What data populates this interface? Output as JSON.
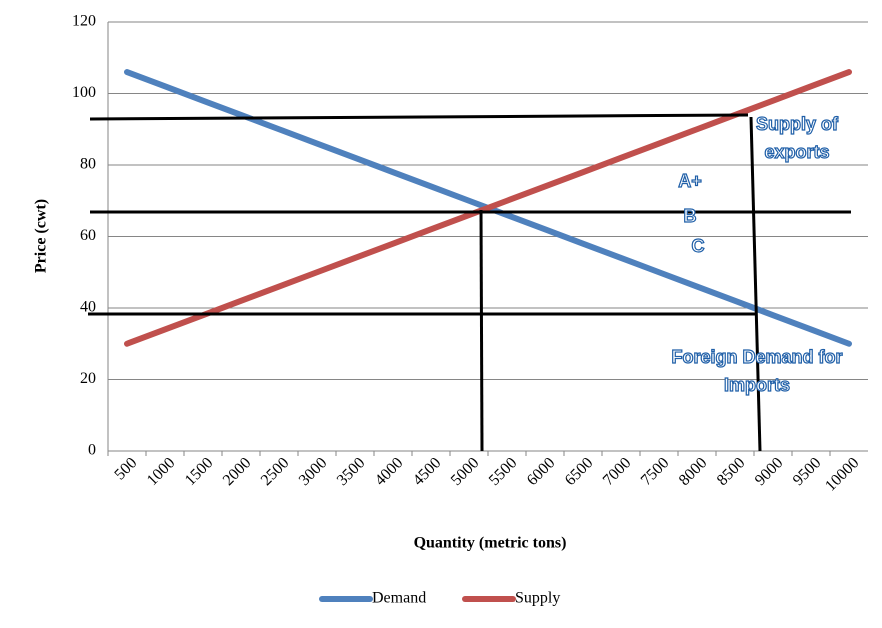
{
  "chart_data": {
    "type": "line",
    "xlabel": "Quantity (metric tons)",
    "ylabel": "Price (cwt)",
    "categories": [
      "500",
      "1000",
      "1500",
      "2000",
      "2500",
      "3000",
      "3500",
      "4000",
      "4500",
      "5000",
      "5500",
      "6000",
      "6500",
      "7000",
      "7500",
      "8000",
      "8500",
      "9000",
      "9500",
      "10000"
    ],
    "series": [
      {
        "name": "Demand",
        "color": "#4f81bd",
        "values": [
          106,
          102,
          98,
          94,
          90,
          86,
          82,
          78,
          74,
          70,
          66,
          62,
          58,
          54,
          50,
          46,
          42,
          38,
          34,
          30
        ]
      },
      {
        "name": "Supply",
        "color": "#c0504d",
        "values": [
          30,
          34,
          38,
          42,
          46,
          50,
          54,
          58,
          62,
          66,
          70,
          74,
          78,
          82,
          86,
          90,
          94,
          98,
          102,
          106
        ]
      }
    ],
    "ylim": [
      0,
      120
    ],
    "yticks": [
      0,
      20,
      40,
      60,
      80,
      100,
      120
    ],
    "grid": true,
    "legend": "bottom",
    "annotations": [
      [
        "Supply of",
        "exports"
      ],
      [
        "A+"
      ],
      [
        "B"
      ],
      [
        "C"
      ],
      [
        "Foreign Demand for",
        "Imports"
      ]
    ]
  }
}
